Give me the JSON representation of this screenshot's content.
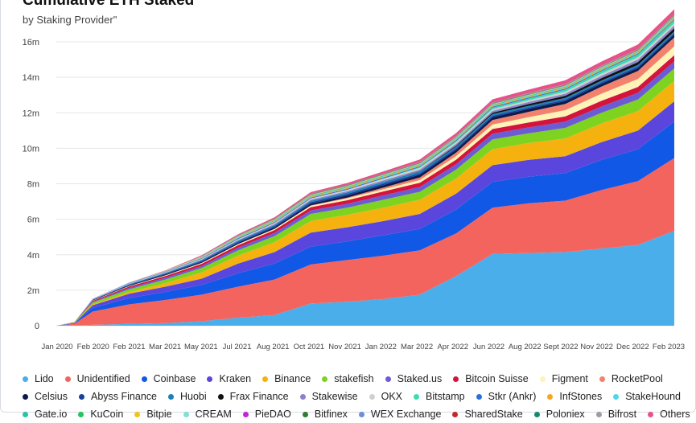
{
  "chart_data": {
    "type": "area",
    "title": "Cumulative ETH Staked",
    "subtitle": "by Staking Provider\"",
    "xlabel": "",
    "ylabel": "",
    "stacked": true,
    "ylim": [
      0,
      17
    ],
    "y_ticks": [
      0,
      2,
      4,
      6,
      8,
      10,
      12,
      14,
      16
    ],
    "y_tick_labels": [
      "0",
      "2m",
      "4m",
      "6m",
      "8m",
      "10m",
      "12m",
      "14m",
      "16m"
    ],
    "x_tick_labels": [
      "Jan 2020",
      "Feb 2020",
      "Feb 2021",
      "Mar 2021",
      "May 2021",
      "Jul 2021",
      "Aug 2021",
      "Oct 2021",
      "Nov 2021",
      "Jan 2022",
      "Mar 2022",
      "Apr 2022",
      "Jun 2022",
      "Aug 2022",
      "Sept 2022",
      "Nov 2022",
      "Dec 2022",
      "Feb 2023"
    ],
    "grid": true,
    "legend_position": "bottom",
    "x": [
      0,
      0.5,
      1,
      2,
      3,
      4,
      5,
      6,
      7,
      8,
      9,
      10,
      11,
      12,
      13,
      14,
      15,
      16,
      17
    ],
    "series": [
      {
        "name": "Lido",
        "color": "#4aaeea",
        "values": [
          0,
          0.01,
          0.05,
          0.1,
          0.15,
          0.25,
          0.45,
          0.6,
          1.25,
          1.35,
          1.5,
          1.75,
          2.8,
          4.05,
          4.1,
          4.15,
          4.35,
          4.55,
          5.35
        ]
      },
      {
        "name": "Unidentified",
        "color": "#f4645f",
        "values": [
          0,
          0.1,
          0.75,
          1.1,
          1.3,
          1.5,
          1.75,
          2.0,
          2.2,
          2.35,
          2.45,
          2.5,
          2.4,
          2.6,
          2.8,
          2.9,
          3.3,
          3.6,
          4.1
        ]
      },
      {
        "name": "Coinbase",
        "color": "#1158e6",
        "values": [
          0,
          0.03,
          0.2,
          0.35,
          0.45,
          0.55,
          0.75,
          0.9,
          1.0,
          1.05,
          1.15,
          1.2,
          1.35,
          1.45,
          1.5,
          1.55,
          1.7,
          1.8,
          2.05
        ]
      },
      {
        "name": "Kraken",
        "color": "#5b46dd",
        "values": [
          0,
          0.02,
          0.15,
          0.25,
          0.3,
          0.35,
          0.55,
          0.65,
          0.8,
          0.8,
          0.8,
          0.85,
          0.9,
          0.95,
          0.95,
          0.95,
          1.0,
          1.05,
          1.15
        ]
      },
      {
        "name": "Binance",
        "color": "#f5b20f",
        "values": [
          0,
          0.01,
          0.05,
          0.1,
          0.2,
          0.35,
          0.45,
          0.55,
          0.65,
          0.7,
          0.75,
          0.8,
          0.85,
          0.9,
          0.95,
          1.0,
          1.05,
          1.1,
          1.15
        ]
      },
      {
        "name": "stakefish",
        "color": "#7ed321",
        "values": [
          0,
          0.02,
          0.1,
          0.15,
          0.2,
          0.25,
          0.3,
          0.35,
          0.4,
          0.4,
          0.45,
          0.45,
          0.5,
          0.55,
          0.55,
          0.6,
          0.6,
          0.65,
          0.7
        ]
      },
      {
        "name": "Staked.us",
        "color": "#6b5cd6",
        "values": [
          0,
          0.01,
          0.05,
          0.08,
          0.1,
          0.12,
          0.15,
          0.18,
          0.2,
          0.22,
          0.25,
          0.27,
          0.3,
          0.32,
          0.33,
          0.35,
          0.36,
          0.38,
          0.4
        ]
      },
      {
        "name": "Bitcoin Suisse",
        "color": "#d4143c",
        "values": [
          0,
          0.01,
          0.05,
          0.08,
          0.1,
          0.12,
          0.14,
          0.16,
          0.18,
          0.2,
          0.22,
          0.24,
          0.26,
          0.27,
          0.28,
          0.3,
          0.32,
          0.33,
          0.35
        ]
      },
      {
        "name": "Figment",
        "color": "#fff3b8",
        "values": [
          0,
          0,
          0.02,
          0.03,
          0.04,
          0.05,
          0.06,
          0.07,
          0.08,
          0.1,
          0.12,
          0.15,
          0.2,
          0.25,
          0.3,
          0.35,
          0.4,
          0.45,
          0.5
        ]
      },
      {
        "name": "RocketPool",
        "color": "#f2826e",
        "values": [
          0,
          0,
          0,
          0,
          0,
          0,
          0,
          0,
          0.02,
          0.05,
          0.1,
          0.15,
          0.2,
          0.25,
          0.3,
          0.35,
          0.4,
          0.45,
          0.5
        ]
      },
      {
        "name": "Celsius",
        "color": "#0d1a4a",
        "values": [
          0,
          0,
          0.02,
          0.04,
          0.05,
          0.06,
          0.07,
          0.08,
          0.1,
          0.12,
          0.14,
          0.15,
          0.16,
          0.16,
          0.16,
          0.16,
          0.16,
          0.16,
          0.16
        ]
      },
      {
        "name": "Abyss Finance",
        "color": "#1a3f9e",
        "values": [
          0,
          0,
          0.02,
          0.03,
          0.04,
          0.05,
          0.06,
          0.07,
          0.08,
          0.08,
          0.08,
          0.08,
          0.08,
          0.08,
          0.08,
          0.08,
          0.08,
          0.08,
          0.08
        ]
      },
      {
        "name": "Huobi",
        "color": "#1d7fb8",
        "values": [
          0,
          0,
          0.02,
          0.03,
          0.04,
          0.05,
          0.06,
          0.07,
          0.08,
          0.09,
          0.1,
          0.1,
          0.1,
          0.1,
          0.1,
          0.1,
          0.1,
          0.1,
          0.1
        ]
      },
      {
        "name": "Frax Finance",
        "color": "#111111",
        "values": [
          0,
          0,
          0,
          0,
          0,
          0,
          0,
          0,
          0,
          0,
          0,
          0.02,
          0.05,
          0.08,
          0.1,
          0.12,
          0.14,
          0.16,
          0.18
        ]
      },
      {
        "name": "Stakewise",
        "color": "#8a83c9",
        "values": [
          0,
          0,
          0,
          0.01,
          0.02,
          0.03,
          0.04,
          0.05,
          0.06,
          0.07,
          0.08,
          0.09,
          0.1,
          0.1,
          0.11,
          0.12,
          0.13,
          0.14,
          0.15
        ]
      },
      {
        "name": "OKX",
        "color": "#d0d0d0",
        "values": [
          0,
          0,
          0.01,
          0.02,
          0.03,
          0.04,
          0.05,
          0.06,
          0.07,
          0.08,
          0.09,
          0.1,
          0.1,
          0.1,
          0.1,
          0.11,
          0.12,
          0.13,
          0.14
        ]
      },
      {
        "name": "Bitstamp",
        "color": "#3ddbb0",
        "values": [
          0,
          0,
          0,
          0,
          0,
          0,
          0,
          0,
          0,
          0,
          0.02,
          0.04,
          0.06,
          0.08,
          0.1,
          0.12,
          0.14,
          0.16,
          0.18
        ]
      },
      {
        "name": "Stkr (Ankr)",
        "color": "#2b6fe0",
        "values": [
          0,
          0,
          0.01,
          0.02,
          0.03,
          0.04,
          0.05,
          0.05,
          0.05,
          0.05,
          0.05,
          0.05,
          0.05,
          0.05,
          0.05,
          0.05,
          0.05,
          0.05,
          0.05
        ]
      },
      {
        "name": "InfStones",
        "color": "#f5a623",
        "values": [
          0,
          0,
          0,
          0,
          0.01,
          0.02,
          0.03,
          0.04,
          0.05,
          0.05,
          0.05,
          0.05,
          0.05,
          0.05,
          0.05,
          0.05,
          0.05,
          0.05,
          0.05
        ]
      },
      {
        "name": "StakeHound",
        "color": "#4fd6e8",
        "values": [
          0,
          0,
          0.01,
          0.02,
          0.02,
          0.02,
          0.02,
          0.02,
          0.02,
          0.02,
          0.02,
          0.02,
          0.02,
          0.02,
          0.02,
          0.02,
          0.02,
          0.02,
          0.02
        ]
      },
      {
        "name": "Gate.io",
        "color": "#27c4a8",
        "values": [
          0,
          0,
          0,
          0,
          0,
          0.01,
          0.02,
          0.03,
          0.03,
          0.03,
          0.03,
          0.03,
          0.03,
          0.03,
          0.03,
          0.03,
          0.03,
          0.03,
          0.03
        ]
      },
      {
        "name": "KuCoin",
        "color": "#22c55e",
        "values": [
          0,
          0,
          0,
          0,
          0,
          0.01,
          0.02,
          0.02,
          0.02,
          0.02,
          0.02,
          0.02,
          0.02,
          0.02,
          0.02,
          0.02,
          0.02,
          0.02,
          0.02
        ]
      },
      {
        "name": "Bitpie",
        "color": "#f0c419",
        "values": [
          0,
          0,
          0,
          0,
          0.01,
          0.02,
          0.02,
          0.02,
          0.02,
          0.02,
          0.02,
          0.02,
          0.02,
          0.02,
          0.02,
          0.02,
          0.02,
          0.02,
          0.02
        ]
      },
      {
        "name": "CREAM",
        "color": "#7fe0d6",
        "values": [
          0,
          0,
          0,
          0,
          0,
          0.01,
          0.01,
          0.02,
          0.02,
          0.02,
          0.02,
          0.02,
          0.02,
          0.02,
          0.02,
          0.02,
          0.02,
          0.02,
          0.02
        ]
      },
      {
        "name": "PieDAO",
        "color": "#c026d3",
        "values": [
          0,
          0,
          0,
          0,
          0,
          0.01,
          0.01,
          0.01,
          0.01,
          0.01,
          0.01,
          0.01,
          0.01,
          0.01,
          0.01,
          0.01,
          0.01,
          0.01,
          0.01
        ]
      },
      {
        "name": "Bitfinex",
        "color": "#2e7d32",
        "values": [
          0,
          0,
          0,
          0,
          0,
          0,
          0.01,
          0.01,
          0.02,
          0.02,
          0.02,
          0.02,
          0.02,
          0.02,
          0.02,
          0.02,
          0.02,
          0.02,
          0.02
        ]
      },
      {
        "name": "WEX Exchange",
        "color": "#6c8fd8",
        "values": [
          0,
          0,
          0,
          0,
          0,
          0.01,
          0.01,
          0.01,
          0.01,
          0.01,
          0.01,
          0.01,
          0.01,
          0.01,
          0.01,
          0.01,
          0.01,
          0.01,
          0.01
        ]
      },
      {
        "name": "SharedStake",
        "color": "#c62828",
        "values": [
          0,
          0,
          0,
          0,
          0,
          0.01,
          0.02,
          0.02,
          0.02,
          0.02,
          0.02,
          0.02,
          0.02,
          0.02,
          0.02,
          0.02,
          0.02,
          0.02,
          0.02
        ]
      },
      {
        "name": "Poloniex",
        "color": "#138a6e",
        "values": [
          0,
          0,
          0,
          0,
          0,
          0,
          0.01,
          0.01,
          0.01,
          0.01,
          0.01,
          0.01,
          0.01,
          0.01,
          0.01,
          0.01,
          0.01,
          0.01,
          0.01
        ]
      },
      {
        "name": "Bifrost",
        "color": "#9e9e9e",
        "values": [
          0,
          0,
          0,
          0,
          0,
          0,
          0,
          0,
          0,
          0,
          0,
          0.01,
          0.01,
          0.01,
          0.02,
          0.02,
          0.02,
          0.02,
          0.02
        ]
      },
      {
        "name": "Others",
        "color": "#e5538a",
        "values": [
          0,
          0,
          0.01,
          0.02,
          0.03,
          0.04,
          0.05,
          0.06,
          0.08,
          0.1,
          0.12,
          0.14,
          0.16,
          0.18,
          0.2,
          0.22,
          0.24,
          0.26,
          0.3
        ]
      }
    ]
  }
}
